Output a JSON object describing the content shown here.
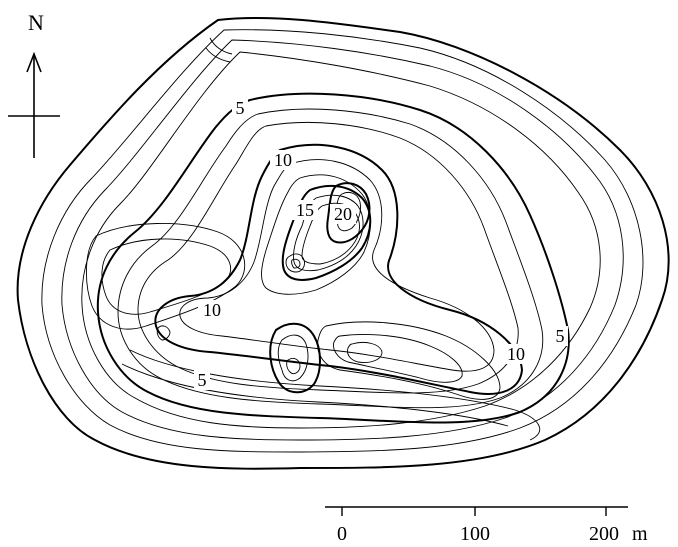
{
  "north_arrow": {
    "label": "N"
  },
  "contour_labels": {
    "outer_a": "5",
    "outer_b": "5",
    "outer_c": "5",
    "mid_a": "10",
    "mid_b": "10",
    "mid_c": "10",
    "peak_a": "15",
    "peak_b": "20"
  },
  "scale_bar": {
    "tick_0": "0",
    "tick_100": "100",
    "tick_200": "200",
    "unit": "m"
  }
}
